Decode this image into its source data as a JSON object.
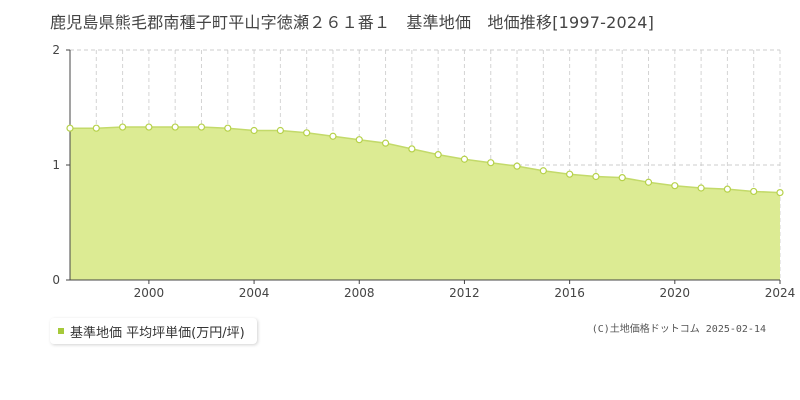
{
  "title": "鹿児島県熊毛郡南種子町平山字徳瀬２６１番１　基準地価　地価推移[1997-2024]",
  "legend_label": "基準地価 平均坪単価(万円/坪)",
  "copyright": "(C)土地価格ドットコム 2025-02-14",
  "colors": {
    "area_fill": "#dceb93",
    "line": "#c3da6a",
    "point_fill": "#ffffff",
    "point_stroke": "#b6d14a",
    "legend_swatch": "#a6c93a"
  },
  "chart_data": {
    "type": "area",
    "title": "",
    "xlabel": "",
    "ylabel": "",
    "xlim": [
      1997,
      2024
    ],
    "ylim": [
      0,
      2
    ],
    "y_ticks": [
      "0",
      "1",
      "2"
    ],
    "x_ticks": [
      "2000",
      "2004",
      "2008",
      "2012",
      "2016",
      "2020",
      "2024"
    ],
    "grid": true,
    "x": [
      1997,
      1998,
      1999,
      2000,
      2001,
      2002,
      2003,
      2004,
      2005,
      2006,
      2007,
      2008,
      2009,
      2010,
      2011,
      2012,
      2013,
      2014,
      2015,
      2016,
      2017,
      2018,
      2019,
      2020,
      2021,
      2022,
      2023,
      2024
    ],
    "series": [
      {
        "name": "基準地価 平均坪単価(万円/坪)",
        "values": [
          1.32,
          1.32,
          1.33,
          1.33,
          1.33,
          1.33,
          1.32,
          1.3,
          1.3,
          1.28,
          1.25,
          1.22,
          1.19,
          1.14,
          1.09,
          1.05,
          1.02,
          0.99,
          0.95,
          0.92,
          0.9,
          0.89,
          0.85,
          0.82,
          0.8,
          0.79,
          0.77,
          0.76
        ]
      }
    ]
  }
}
